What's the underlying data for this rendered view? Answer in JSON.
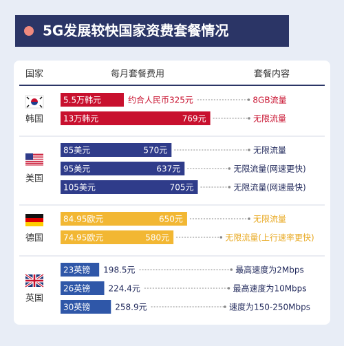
{
  "chart_data": {
    "type": "bar",
    "title": "5G发展较快国家资费套餐情况",
    "columns": [
      "国家",
      "每月套餐费用",
      "套餐内容"
    ],
    "groups": [
      {
        "country": "韩国",
        "color": "#c8102e",
        "text_color": "#c8102e",
        "local_prices": [
          "5.5万韩元",
          "13万韩元"
        ],
        "values": [
          325,
          769
        ],
        "value_labels": [
          "约合人民币325元",
          "769元"
        ],
        "plans": [
          "8GB流量",
          "无限流量"
        ]
      },
      {
        "country": "美国",
        "color": "#2f3c8a",
        "text_color": "#222a5c",
        "local_prices": [
          "85美元",
          "95美元",
          "105美元"
        ],
        "values": [
          570,
          637,
          705
        ],
        "value_labels": [
          "570元",
          "637元",
          "705元"
        ],
        "plans": [
          "无限流量",
          "无限流量(网速更快)",
          "无限流量(网速最快)"
        ]
      },
      {
        "country": "德国",
        "color": "#f2b733",
        "text_color": "#e8a820",
        "local_prices": [
          "84.95欧元",
          "74.95欧元"
        ],
        "values": [
          650,
          580
        ],
        "value_labels": [
          "650元",
          "580元"
        ],
        "plans": [
          "无限流量",
          "无限流量(上行速率更快)"
        ]
      },
      {
        "country": "英国",
        "color": "#2f57a8",
        "text_color": "#222a5c",
        "local_prices": [
          "23英镑",
          "26英镑",
          "30英镑"
        ],
        "values": [
          198.5,
          224.4,
          258.9
        ],
        "value_labels": [
          "198.5元",
          "224.4元",
          "258.9元"
        ],
        "plans": [
          "最高速度为2Mbps",
          "最高速度为10Mbps",
          "速度为150-250Mbps"
        ]
      }
    ]
  }
}
